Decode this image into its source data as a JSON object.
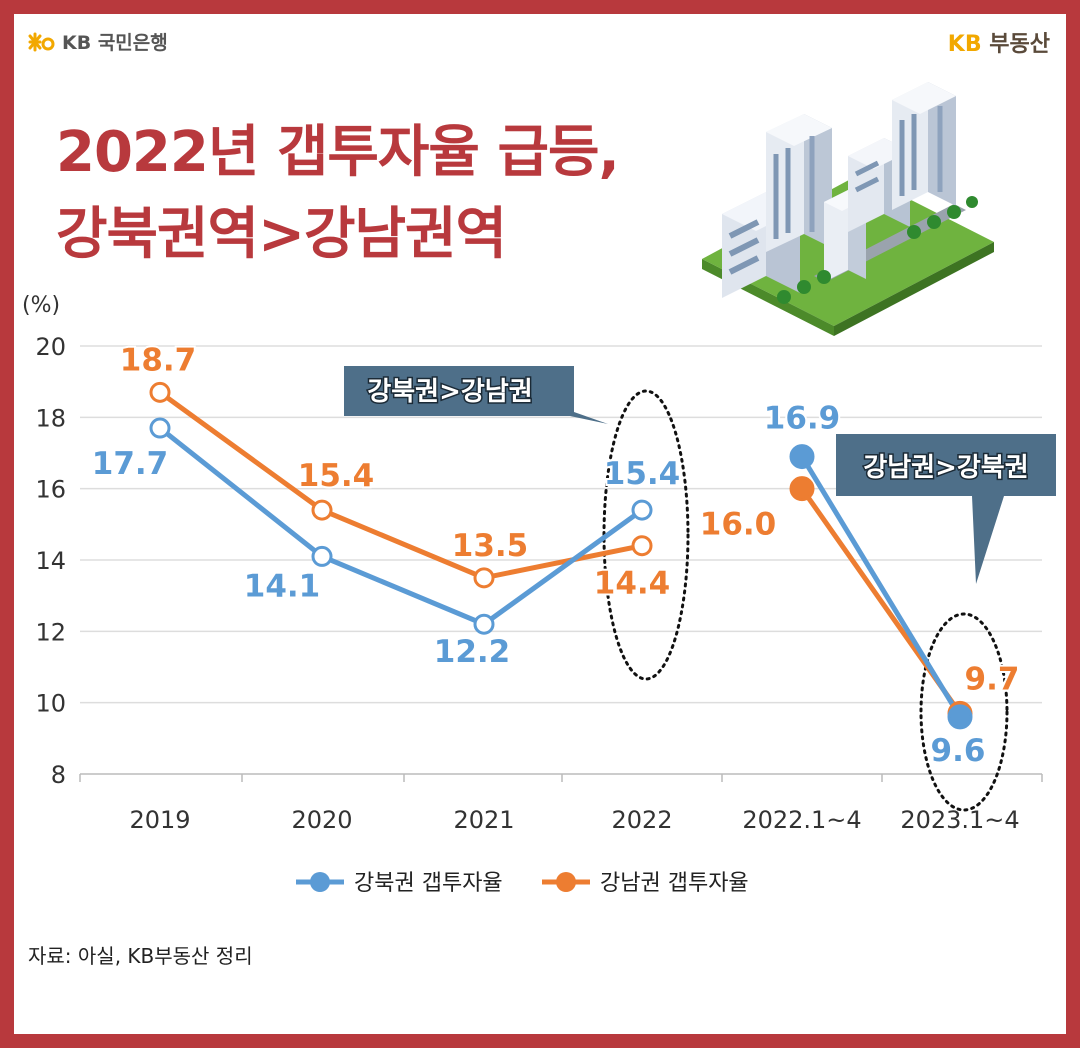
{
  "header": {
    "bank_logo_text": "KB 국민은행",
    "brand_kb": "KB",
    "brand_name": "부동산"
  },
  "title": {
    "line1": "2022년 갭투자율 급등,",
    "line2": "강북권역>강남권역"
  },
  "chart_data": {
    "type": "line",
    "unit_label": "(%)",
    "categories": [
      "2019",
      "2020",
      "2021",
      "2022",
      "2022.1~4",
      "2023.1~4"
    ],
    "ylim": [
      8,
      20
    ],
    "yticks": [
      8,
      10,
      12,
      14,
      16,
      18,
      20
    ],
    "grid": true,
    "legend_position": "bottom",
    "series": [
      {
        "name": "강북권 갭투자율",
        "color": "#5b9bd5",
        "values": [
          17.7,
          14.1,
          12.2,
          15.4,
          16.9,
          9.6
        ],
        "labels": [
          "17.7",
          "14.1",
          "12.2",
          "15.4",
          "16.9",
          "9.6"
        ]
      },
      {
        "name": "강남권 갭투자율",
        "color": "#ed7d31",
        "values": [
          18.7,
          15.4,
          13.5,
          14.4,
          16.0,
          9.7
        ],
        "labels": [
          "18.7",
          "15.4",
          "13.5",
          "14.4",
          "16.0",
          "9.7"
        ]
      }
    ],
    "callouts": [
      {
        "text": "강북권>강남권",
        "target": "2022"
      },
      {
        "text": "강남권>강북권",
        "target": "2023.1~4"
      }
    ]
  },
  "source": "자료: 아실, KB부동산 정리"
}
